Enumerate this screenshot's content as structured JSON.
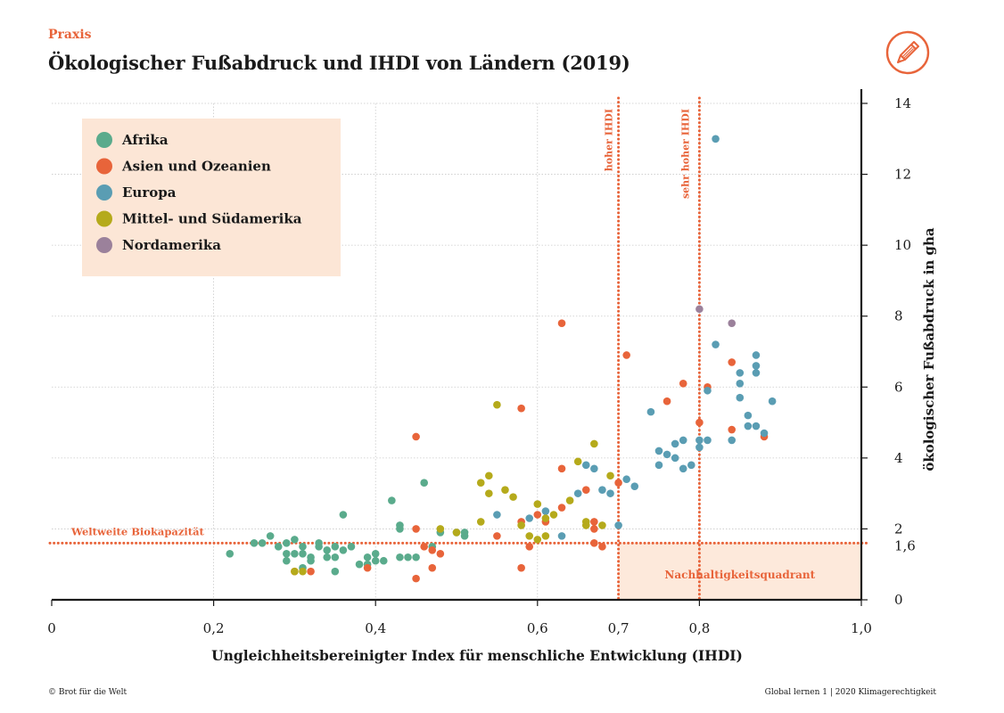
{
  "header": {
    "kicker": "Praxis",
    "title": "Ökologischer Fußabdruck und IHDI von Ländern (2019)"
  },
  "footer": {
    "left": "© Brot für die Welt",
    "right": "Global lernen  1 | 2020   Klimagerechtigkeit"
  },
  "icons": {
    "logo": "pencil-circle-icon"
  },
  "colors": {
    "accent": "#e8643a",
    "legend_bg": "#fce6d6",
    "quadrant_bg": "#fde9db",
    "grid": "#c9c9c9"
  },
  "chart_data": {
    "type": "scatter",
    "xlabel": "Ungleichheitsbereinigter Index für menschliche Entwicklung (IHDI)",
    "ylabel": "ökologischer Fußabdruck in gha",
    "xlim": [
      0,
      1.0
    ],
    "ylim": [
      0,
      14
    ],
    "grid": true,
    "legend_position": "top-left",
    "x_ticks": [
      {
        "value": 0,
        "label": "0"
      },
      {
        "value": 0.2,
        "label": "0,2"
      },
      {
        "value": 0.4,
        "label": "0,4"
      },
      {
        "value": 0.6,
        "label": "0,6"
      },
      {
        "value": 0.8,
        "label": "0,8"
      },
      {
        "value": 1.0,
        "label": "1,0"
      }
    ],
    "extra_x_tick": {
      "value": 0.7,
      "label": "0,7"
    },
    "y_ticks": [
      {
        "value": 0,
        "label": "0"
      },
      {
        "value": 2,
        "label": "2"
      },
      {
        "value": 4,
        "label": "4"
      },
      {
        "value": 6,
        "label": "6"
      },
      {
        "value": 8,
        "label": "8"
      },
      {
        "value": 10,
        "label": "10"
      },
      {
        "value": 12,
        "label": "12"
      },
      {
        "value": 14,
        "label": "14"
      }
    ],
    "extra_y_tick": {
      "value": 1.6,
      "label": "1,6"
    },
    "reference_lines": {
      "biocapacity": {
        "y": 1.6,
        "label": "Weltweite Biokapazität"
      },
      "high_ihdi": {
        "x": 0.7,
        "label": "hoher IHDI"
      },
      "very_high_ihdi": {
        "x": 0.8,
        "label": "sehr hoher IHDI"
      }
    },
    "quadrant": {
      "x": [
        0.7,
        1.0
      ],
      "y": [
        0,
        1.6
      ],
      "label": "Nachhaltigkeitsquadrant"
    },
    "series": [
      {
        "name": "Afrika",
        "color": "#5aab8c",
        "points": [
          [
            0.22,
            1.3
          ],
          [
            0.25,
            1.6
          ],
          [
            0.26,
            1.6
          ],
          [
            0.27,
            1.8
          ],
          [
            0.28,
            1.5
          ],
          [
            0.29,
            1.6
          ],
          [
            0.29,
            1.3
          ],
          [
            0.29,
            1.1
          ],
          [
            0.3,
            1.7
          ],
          [
            0.3,
            1.3
          ],
          [
            0.31,
            1.5
          ],
          [
            0.31,
            1.3
          ],
          [
            0.31,
            0.9
          ],
          [
            0.32,
            1.2
          ],
          [
            0.32,
            1.1
          ],
          [
            0.33,
            1.6
          ],
          [
            0.33,
            1.5
          ],
          [
            0.34,
            1.2
          ],
          [
            0.34,
            1.4
          ],
          [
            0.35,
            0.8
          ],
          [
            0.35,
            1.5
          ],
          [
            0.35,
            1.2
          ],
          [
            0.36,
            2.4
          ],
          [
            0.36,
            1.4
          ],
          [
            0.37,
            1.5
          ],
          [
            0.38,
            1.0
          ],
          [
            0.39,
            1.2
          ],
          [
            0.39,
            1.0
          ],
          [
            0.4,
            1.3
          ],
          [
            0.4,
            1.1
          ],
          [
            0.41,
            1.1
          ],
          [
            0.42,
            2.8
          ],
          [
            0.43,
            2.1
          ],
          [
            0.43,
            2.0
          ],
          [
            0.43,
            1.2
          ],
          [
            0.44,
            1.2
          ],
          [
            0.45,
            1.2
          ],
          [
            0.46,
            3.3
          ],
          [
            0.47,
            1.5
          ],
          [
            0.48,
            1.9
          ],
          [
            0.5,
            1.9
          ],
          [
            0.51,
            1.8
          ],
          [
            0.51,
            1.9
          ]
        ]
      },
      {
        "name": "Asien und Ozeanien",
        "color": "#e8643a",
        "points": [
          [
            0.3,
            0.8
          ],
          [
            0.32,
            0.8
          ],
          [
            0.39,
            0.9
          ],
          [
            0.45,
            4.6
          ],
          [
            0.45,
            0.6
          ],
          [
            0.45,
            2.0
          ],
          [
            0.46,
            1.5
          ],
          [
            0.47,
            1.4
          ],
          [
            0.47,
            0.9
          ],
          [
            0.48,
            1.3
          ],
          [
            0.55,
            1.8
          ],
          [
            0.58,
            0.9
          ],
          [
            0.58,
            5.4
          ],
          [
            0.58,
            2.2
          ],
          [
            0.59,
            1.5
          ],
          [
            0.6,
            2.4
          ],
          [
            0.61,
            2.2
          ],
          [
            0.63,
            2.6
          ],
          [
            0.63,
            3.7
          ],
          [
            0.63,
            7.8
          ],
          [
            0.66,
            3.1
          ],
          [
            0.67,
            2.2
          ],
          [
            0.67,
            2.0
          ],
          [
            0.67,
            1.6
          ],
          [
            0.68,
            1.5
          ],
          [
            0.7,
            3.3
          ],
          [
            0.71,
            6.9
          ],
          [
            0.76,
            5.6
          ],
          [
            0.78,
            6.1
          ],
          [
            0.8,
            5.0
          ],
          [
            0.81,
            6.0
          ],
          [
            0.84,
            6.7
          ],
          [
            0.84,
            4.8
          ],
          [
            0.88,
            4.6
          ]
        ]
      },
      {
        "name": "Europa",
        "color": "#5a9db3",
        "points": [
          [
            0.55,
            2.4
          ],
          [
            0.59,
            2.3
          ],
          [
            0.61,
            2.5
          ],
          [
            0.63,
            1.8
          ],
          [
            0.65,
            3.0
          ],
          [
            0.66,
            3.8
          ],
          [
            0.67,
            3.7
          ],
          [
            0.68,
            3.1
          ],
          [
            0.69,
            3.0
          ],
          [
            0.7,
            2.1
          ],
          [
            0.71,
            3.4
          ],
          [
            0.72,
            3.2
          ],
          [
            0.74,
            5.3
          ],
          [
            0.75,
            4.2
          ],
          [
            0.75,
            3.8
          ],
          [
            0.76,
            4.1
          ],
          [
            0.77,
            4.4
          ],
          [
            0.77,
            4.0
          ],
          [
            0.78,
            3.7
          ],
          [
            0.78,
            4.5
          ],
          [
            0.79,
            3.8
          ],
          [
            0.8,
            4.5
          ],
          [
            0.8,
            4.3
          ],
          [
            0.81,
            4.5
          ],
          [
            0.81,
            5.9
          ],
          [
            0.82,
            13.0
          ],
          [
            0.82,
            7.2
          ],
          [
            0.85,
            6.1
          ],
          [
            0.85,
            6.4
          ],
          [
            0.85,
            5.7
          ],
          [
            0.86,
            5.2
          ],
          [
            0.86,
            4.9
          ],
          [
            0.87,
            6.9
          ],
          [
            0.87,
            6.6
          ],
          [
            0.87,
            6.4
          ],
          [
            0.87,
            4.9
          ],
          [
            0.88,
            4.7
          ],
          [
            0.89,
            5.6
          ],
          [
            0.84,
            4.5
          ]
        ]
      },
      {
        "name": "Mittel- und Südamerika",
        "color": "#b5aa1b",
        "points": [
          [
            0.3,
            0.8
          ],
          [
            0.31,
            0.8
          ],
          [
            0.48,
            2.0
          ],
          [
            0.5,
            1.9
          ],
          [
            0.53,
            2.2
          ],
          [
            0.53,
            3.3
          ],
          [
            0.54,
            3.5
          ],
          [
            0.54,
            3.0
          ],
          [
            0.55,
            5.5
          ],
          [
            0.56,
            3.1
          ],
          [
            0.57,
            2.9
          ],
          [
            0.58,
            2.1
          ],
          [
            0.59,
            1.8
          ],
          [
            0.6,
            2.7
          ],
          [
            0.6,
            1.7
          ],
          [
            0.61,
            1.8
          ],
          [
            0.61,
            2.3
          ],
          [
            0.62,
            2.4
          ],
          [
            0.64,
            2.8
          ],
          [
            0.65,
            3.9
          ],
          [
            0.66,
            2.1
          ],
          [
            0.66,
            2.2
          ],
          [
            0.67,
            4.4
          ],
          [
            0.68,
            2.1
          ],
          [
            0.69,
            3.5
          ]
        ]
      },
      {
        "name": "Nordamerika",
        "color": "#9b819b",
        "points": [
          [
            0.8,
            8.2
          ],
          [
            0.84,
            7.8
          ]
        ]
      }
    ]
  }
}
